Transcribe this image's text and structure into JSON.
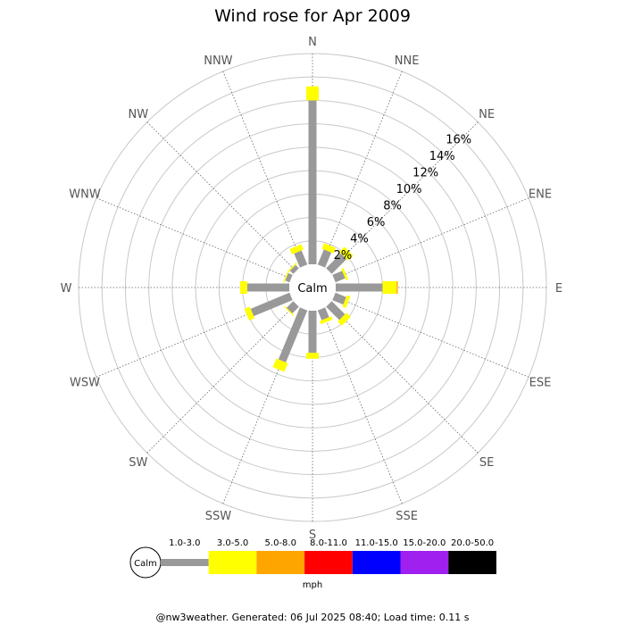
{
  "chart_data": {
    "type": "windrose",
    "title": "Wind rose for Apr 2009",
    "directions": [
      "N",
      "NNE",
      "NE",
      "ENE",
      "E",
      "ESE",
      "SE",
      "SSE",
      "S",
      "SSW",
      "SW",
      "WSW",
      "W",
      "WNW",
      "NW",
      "NNW"
    ],
    "radial_ticks": [
      "2%",
      "4%",
      "6%",
      "8%",
      "10%",
      "12%",
      "14%",
      "16%"
    ],
    "radial_max": 18,
    "calm_label": "Calm",
    "speed_bins": [
      {
        "label": "1.0-3.0",
        "color": "#999999"
      },
      {
        "label": "3.0-5.0",
        "color": "#ffff00"
      },
      {
        "label": "5.0-8.0",
        "color": "#ffa500"
      },
      {
        "label": "8.0-11.0",
        "color": "#ff0000"
      },
      {
        "label": "11.0-15.0",
        "color": "#0000ff"
      },
      {
        "label": "15.0-20.0",
        "color": "#a020f0"
      },
      {
        "label": "20.0-50.0",
        "color": "#000000"
      }
    ],
    "series": [
      {
        "values": [
          14.0,
          1.4,
          1.8,
          0.9,
          4.0,
          1.0,
          1.6,
          0.9,
          3.6,
          4.8,
          0.8,
          3.6,
          3.6,
          0.4,
          0.4,
          1.3
        ]
      },
      {
        "values": [
          1.2,
          0.5,
          0.6,
          0.2,
          1.2,
          0.3,
          0.5,
          0.3,
          0.5,
          0.8,
          0.1,
          0.5,
          0.6,
          0.1,
          0.1,
          0.5
        ]
      },
      {
        "values": [
          0,
          0,
          0,
          0,
          0.1,
          0,
          0,
          0,
          0,
          0,
          0,
          0,
          0,
          0,
          0,
          0
        ]
      }
    ],
    "legend_unit": "mph"
  },
  "footer": "@nw3weather. Generated: 06 Jul 2025 08:40; Load time: 0.11 s"
}
